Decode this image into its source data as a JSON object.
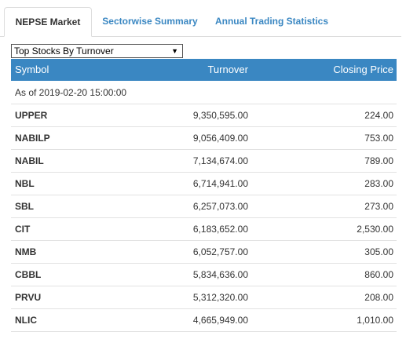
{
  "tabs": [
    {
      "label": "NEPSE Market",
      "active": true
    },
    {
      "label": "Sectorwise Summary",
      "active": false
    },
    {
      "label": "Annual Trading Statistics",
      "active": false
    }
  ],
  "colors": {
    "accent": "#3a87c2",
    "border": "#dddddd"
  },
  "selector": {
    "selected": "Top Stocks By Turnover",
    "icon": "dropdown-arrow-icon"
  },
  "table": {
    "headers": {
      "symbol": "Symbol",
      "turnover": "Turnover",
      "closing": "Closing Price"
    },
    "as_of": "As of 2019-02-20 15:00:00",
    "rows": [
      {
        "symbol": "UPPER",
        "turnover": "9,350,595.00",
        "closing": "224.00"
      },
      {
        "symbol": "NABILP",
        "turnover": "9,056,409.00",
        "closing": "753.00"
      },
      {
        "symbol": "NABIL",
        "turnover": "7,134,674.00",
        "closing": "789.00"
      },
      {
        "symbol": "NBL",
        "turnover": "6,714,941.00",
        "closing": "283.00"
      },
      {
        "symbol": "SBL",
        "turnover": "6,257,073.00",
        "closing": "273.00"
      },
      {
        "symbol": "CIT",
        "turnover": "6,183,652.00",
        "closing": "2,530.00"
      },
      {
        "symbol": "NMB",
        "turnover": "6,052,757.00",
        "closing": "305.00"
      },
      {
        "symbol": "CBBL",
        "turnover": "5,834,636.00",
        "closing": "860.00"
      },
      {
        "symbol": "PRVU",
        "turnover": "5,312,320.00",
        "closing": "208.00"
      },
      {
        "symbol": "NLIC",
        "turnover": "4,665,949.00",
        "closing": "1,010.00"
      }
    ]
  }
}
